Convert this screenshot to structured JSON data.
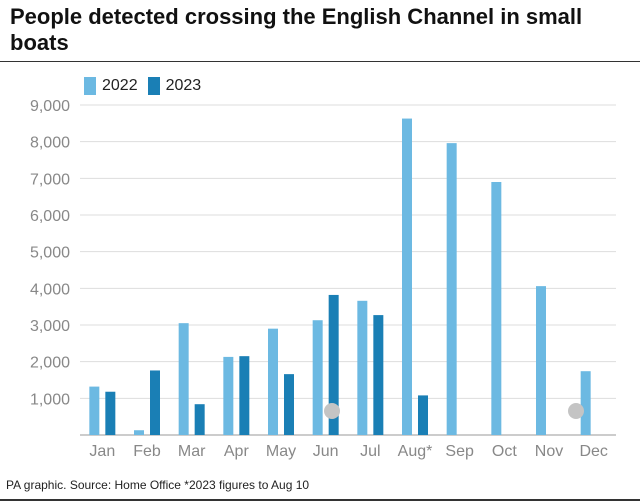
{
  "header": {
    "title": "People detected crossing the English Channel in small boats"
  },
  "footer": {
    "source": "PA graphic. Source: Home Office *2023 figures to Aug 10"
  },
  "colors": {
    "series_2022": "#6cb9e2",
    "series_2023": "#1a7fb5",
    "tick_text": "#888888",
    "gridline": "#dddddd",
    "marker": "#c4c4c4"
  },
  "chart_data": {
    "type": "bar",
    "title": "People detected crossing the English Channel in small boats",
    "xlabel": "",
    "ylabel": "",
    "categories": [
      "Jan",
      "Feb",
      "Mar",
      "Apr",
      "May",
      "Jun",
      "Jul",
      "Aug*",
      "Sep",
      "Oct",
      "Nov",
      "Dec"
    ],
    "series": [
      {
        "name": "2022",
        "values": [
          1320,
          130,
          3050,
          2130,
          2900,
          3130,
          3660,
          8630,
          7960,
          6900,
          4060,
          1740
        ]
      },
      {
        "name": "2023",
        "values": [
          1180,
          1760,
          840,
          2150,
          1660,
          3820,
          3270,
          1080,
          null,
          null,
          null,
          null
        ]
      }
    ],
    "ylim": [
      0,
      9000
    ],
    "yticks": [
      1000,
      2000,
      3000,
      4000,
      5000,
      6000,
      7000,
      8000,
      9000
    ],
    "ytick_labels": [
      "1,000",
      "2,000",
      "3,000",
      "4,000",
      "5,000",
      "6,000",
      "7,000",
      "8,000",
      "9,000"
    ],
    "legend": "top-left",
    "grid": true
  }
}
